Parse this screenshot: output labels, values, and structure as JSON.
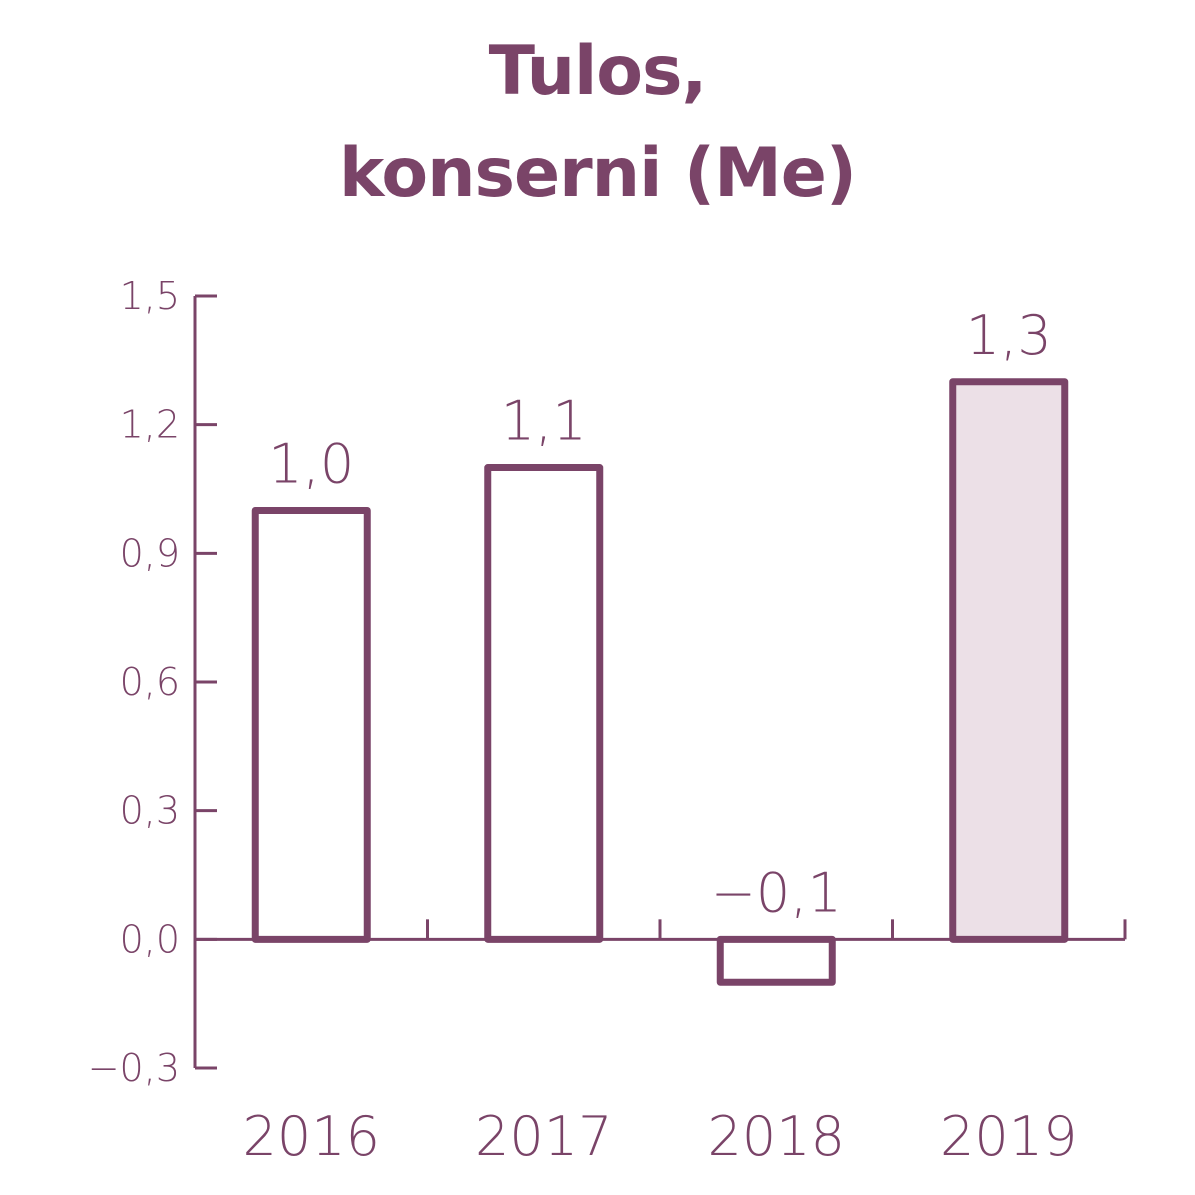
{
  "chart_data": {
    "type": "bar",
    "title_lines": [
      "Tulos,",
      "konserni (Me)"
    ],
    "categories": [
      "2016",
      "2017",
      "2018",
      "2019"
    ],
    "values": [
      1.0,
      1.1,
      -0.1,
      1.3
    ],
    "value_labels": [
      "1,0",
      "1,1",
      "−0,1",
      "1,3"
    ],
    "highlighted": [
      false,
      false,
      false,
      true
    ],
    "ylim": [
      -0.3,
      1.5
    ],
    "yticks": [
      -0.3,
      0.0,
      0.3,
      0.6,
      0.9,
      1.2,
      1.5
    ],
    "ytick_labels": [
      "−0,3",
      "0,0",
      "0,3",
      "0,6",
      "0,9",
      "1,2",
      "1,5"
    ],
    "grid": false,
    "colors": {
      "accent": "#7a4468",
      "highlight_fill": "#ece0e7",
      "bar_fill": "#ffffff"
    }
  }
}
